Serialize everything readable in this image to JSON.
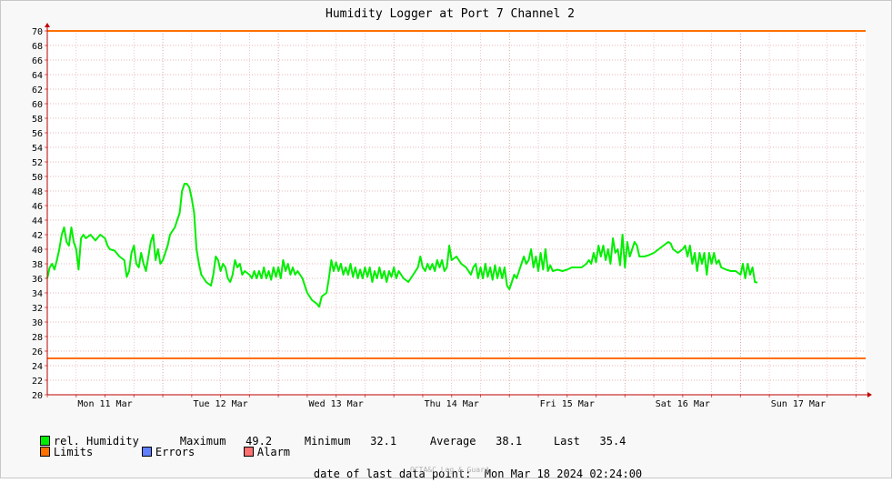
{
  "chart_data": {
    "type": "line",
    "title": "Humidity Logger at Port 7 Channel 2",
    "ylim": [
      20,
      70
    ],
    "yticks": [
      20,
      22,
      24,
      26,
      28,
      30,
      32,
      34,
      36,
      38,
      40,
      42,
      44,
      46,
      48,
      50,
      52,
      54,
      56,
      58,
      60,
      62,
      64,
      66,
      68,
      70
    ],
    "x_range_hours": [
      0,
      170
    ],
    "day_labels": [
      {
        "label": "Mon 11 Mar",
        "hour": 12
      },
      {
        "label": "Tue 12 Mar",
        "hour": 36
      },
      {
        "label": "Wed 13 Mar",
        "hour": 60
      },
      {
        "label": "Thu 14 Mar",
        "hour": 84
      },
      {
        "label": "Fri 15 Mar",
        "hour": 108
      },
      {
        "label": "Sat 16 Mar",
        "hour": 132
      },
      {
        "label": "Sun 17 Mar",
        "hour": 156
      }
    ],
    "limits": {
      "upper": 70,
      "lower": 25
    },
    "series": [
      {
        "name": "rel. Humidity",
        "color": "#00ee00",
        "points": [
          [
            0,
            36
          ],
          [
            0.5,
            37.5
          ],
          [
            1,
            38
          ],
          [
            1.5,
            37.2
          ],
          [
            2,
            38.5
          ],
          [
            2.5,
            40
          ],
          [
            3,
            42
          ],
          [
            3.5,
            43
          ],
          [
            4,
            41
          ],
          [
            4.5,
            40.5
          ],
          [
            5,
            43
          ],
          [
            5.5,
            41
          ],
          [
            6,
            40
          ],
          [
            6.5,
            37.2
          ],
          [
            7,
            41.5
          ],
          [
            7.5,
            42
          ],
          [
            8,
            41.5
          ],
          [
            9,
            42
          ],
          [
            10,
            41.2
          ],
          [
            11,
            42
          ],
          [
            12,
            41.5
          ],
          [
            12.5,
            40.5
          ],
          [
            13,
            40
          ],
          [
            14,
            39.8
          ],
          [
            15,
            39
          ],
          [
            16,
            38.5
          ],
          [
            16.5,
            36.2
          ],
          [
            17,
            37
          ],
          [
            17.5,
            39.5
          ],
          [
            18,
            40.5
          ],
          [
            18.5,
            38
          ],
          [
            19,
            37.5
          ],
          [
            19.5,
            39.5
          ],
          [
            20,
            38
          ],
          [
            20.5,
            37
          ],
          [
            21,
            39
          ],
          [
            21.5,
            41
          ],
          [
            22,
            42
          ],
          [
            22.5,
            38.5
          ],
          [
            23,
            40
          ],
          [
            23.5,
            38
          ],
          [
            24,
            38.5
          ],
          [
            25,
            40.5
          ],
          [
            25.5,
            42
          ],
          [
            26,
            42.5
          ],
          [
            26.5,
            43
          ],
          [
            27,
            44
          ],
          [
            27.5,
            45
          ],
          [
            28,
            48
          ],
          [
            28.5,
            49
          ],
          [
            29,
            49
          ],
          [
            29.5,
            48.5
          ],
          [
            30,
            47
          ],
          [
            30.5,
            45
          ],
          [
            31,
            40
          ],
          [
            31.5,
            38
          ],
          [
            32,
            36.5
          ],
          [
            33,
            35.5
          ],
          [
            34,
            35
          ],
          [
            34.5,
            36.5
          ],
          [
            35,
            39
          ],
          [
            35.5,
            38.5
          ],
          [
            36,
            37
          ],
          [
            36.5,
            38
          ],
          [
            37,
            37.5
          ],
          [
            37.5,
            36
          ],
          [
            38,
            35.5
          ],
          [
            38.5,
            36.5
          ],
          [
            39,
            38.5
          ],
          [
            39.5,
            37.5
          ],
          [
            40,
            38
          ],
          [
            40.5,
            36.5
          ],
          [
            41,
            37
          ],
          [
            42,
            36.5
          ],
          [
            42.5,
            36
          ],
          [
            43,
            37
          ],
          [
            43.5,
            36
          ],
          [
            44,
            37
          ],
          [
            44.5,
            36
          ],
          [
            45,
            37.5
          ],
          [
            45.5,
            36
          ],
          [
            46,
            37
          ],
          [
            46.5,
            35.8
          ],
          [
            47,
            37.5
          ],
          [
            47.5,
            36.2
          ],
          [
            48,
            37.5
          ],
          [
            48.5,
            36
          ],
          [
            49,
            38.5
          ],
          [
            49.5,
            37
          ],
          [
            50,
            38
          ],
          [
            50.5,
            36.5
          ],
          [
            51,
            37.5
          ],
          [
            51.5,
            36.5
          ],
          [
            52,
            37
          ],
          [
            53,
            36
          ],
          [
            54,
            34
          ],
          [
            55,
            33
          ],
          [
            56,
            32.5
          ],
          [
            56.5,
            32.1
          ],
          [
            57,
            33.5
          ],
          [
            58,
            34
          ],
          [
            58.5,
            36
          ],
          [
            59,
            38.5
          ],
          [
            59.5,
            37
          ],
          [
            60,
            38.2
          ],
          [
            60.5,
            37
          ],
          [
            61,
            38
          ],
          [
            61.5,
            36.5
          ],
          [
            62,
            37.5
          ],
          [
            62.5,
            36.5
          ],
          [
            63,
            38
          ],
          [
            63.5,
            36.2
          ],
          [
            64,
            37.5
          ],
          [
            64.5,
            36
          ],
          [
            65,
            37.2
          ],
          [
            65.5,
            36
          ],
          [
            66,
            37.5
          ],
          [
            66.5,
            36.2
          ],
          [
            67,
            37.5
          ],
          [
            67.5,
            35.5
          ],
          [
            68,
            37
          ],
          [
            68.5,
            36
          ],
          [
            69,
            37.5
          ],
          [
            69.5,
            36
          ],
          [
            70,
            37
          ],
          [
            70.5,
            35.5
          ],
          [
            71,
            37
          ],
          [
            71.5,
            36.2
          ],
          [
            72,
            37.5
          ],
          [
            72.5,
            36
          ],
          [
            73,
            37
          ],
          [
            74,
            36
          ],
          [
            75,
            35.5
          ],
          [
            76,
            36.5
          ],
          [
            77,
            37.5
          ],
          [
            77.5,
            39
          ],
          [
            78,
            37.5
          ],
          [
            78.5,
            37
          ],
          [
            79,
            38
          ],
          [
            79.5,
            37.2
          ],
          [
            80,
            38
          ],
          [
            80.5,
            37
          ],
          [
            81,
            38.5
          ],
          [
            81.5,
            37.5
          ],
          [
            82,
            38.5
          ],
          [
            82.5,
            37
          ],
          [
            83,
            37.5
          ],
          [
            83.5,
            40.5
          ],
          [
            84,
            38.5
          ],
          [
            85,
            39
          ],
          [
            86,
            38
          ],
          [
            87,
            37.5
          ],
          [
            88,
            36.5
          ],
          [
            88.5,
            37.5
          ],
          [
            89,
            38
          ],
          [
            89.5,
            36
          ],
          [
            90,
            37.5
          ],
          [
            90.5,
            36
          ],
          [
            91,
            38
          ],
          [
            91.5,
            36.2
          ],
          [
            92,
            37.5
          ],
          [
            92.5,
            35.8
          ],
          [
            93,
            37.8
          ],
          [
            93.5,
            36
          ],
          [
            94,
            37.5
          ],
          [
            94.5,
            36
          ],
          [
            95,
            37.5
          ],
          [
            95.5,
            35
          ],
          [
            96,
            34.5
          ],
          [
            96.5,
            35.5
          ],
          [
            97,
            36.5
          ],
          [
            97.5,
            36
          ],
          [
            98,
            37
          ],
          [
            98.5,
            38
          ],
          [
            99,
            39
          ],
          [
            99.5,
            38
          ],
          [
            100,
            38.5
          ],
          [
            100.5,
            40
          ],
          [
            101,
            37.5
          ],
          [
            101.5,
            39
          ],
          [
            102,
            37
          ],
          [
            102.5,
            39.5
          ],
          [
            103,
            37.2
          ],
          [
            103.5,
            40
          ],
          [
            104,
            37
          ],
          [
            104.5,
            37.8
          ],
          [
            105,
            37
          ],
          [
            106,
            37.2
          ],
          [
            107,
            37
          ],
          [
            108,
            37.2
          ],
          [
            109,
            37.5
          ],
          [
            110,
            37.5
          ],
          [
            111,
            37.5
          ],
          [
            112,
            38
          ],
          [
            112.5,
            38.5
          ],
          [
            113,
            38
          ],
          [
            113.5,
            39.5
          ],
          [
            114,
            38.2
          ],
          [
            114.5,
            40.5
          ],
          [
            115,
            39
          ],
          [
            115.5,
            40.5
          ],
          [
            116,
            38.5
          ],
          [
            116.5,
            40
          ],
          [
            117,
            38
          ],
          [
            117.5,
            41.5
          ],
          [
            118,
            39.5
          ],
          [
            118.5,
            40
          ],
          [
            119,
            37.8
          ],
          [
            119.5,
            42
          ],
          [
            120,
            37.5
          ],
          [
            120.5,
            41
          ],
          [
            121,
            39
          ],
          [
            122,
            41
          ],
          [
            122.5,
            40.5
          ],
          [
            123,
            39
          ],
          [
            124,
            39
          ],
          [
            125,
            39.2
          ],
          [
            126,
            39.5
          ],
          [
            127,
            40
          ],
          [
            128,
            40.5
          ],
          [
            129,
            41
          ],
          [
            129.5,
            40.8
          ],
          [
            130,
            40
          ],
          [
            131,
            39.5
          ],
          [
            132,
            40
          ],
          [
            132.5,
            40.5
          ],
          [
            133,
            39
          ],
          [
            133.5,
            40.5
          ],
          [
            134,
            38
          ],
          [
            134.5,
            39.5
          ],
          [
            135,
            37
          ],
          [
            135.5,
            39.5
          ],
          [
            136,
            38
          ],
          [
            136.5,
            39.5
          ],
          [
            137,
            36.5
          ],
          [
            137.5,
            39.5
          ],
          [
            138,
            38
          ],
          [
            138.5,
            39.5
          ],
          [
            139,
            38
          ],
          [
            139.5,
            38.5
          ],
          [
            140,
            37.5
          ],
          [
            141,
            37.2
          ],
          [
            142,
            37
          ],
          [
            143,
            37
          ],
          [
            144,
            36.5
          ],
          [
            144.5,
            38
          ],
          [
            145,
            36
          ],
          [
            145.5,
            38
          ],
          [
            146,
            36.5
          ],
          [
            146.5,
            37.5
          ],
          [
            147,
            35.5
          ],
          [
            147.5,
            35.4
          ]
        ]
      }
    ],
    "stats": {
      "maximum_label": "Maximum",
      "maximum": "49.2",
      "minimum_label": "Minimum",
      "minimum": "32.1",
      "average_label": "Average",
      "average": "38.1",
      "last_label": "Last",
      "last": "35.4"
    },
    "legend": {
      "series_label": "rel. Humidity",
      "series_color": "#00ee00",
      "limits_label": "Limits",
      "limits_color": "#ff7000",
      "errors_label": "Errors",
      "errors_color": "#6080ff",
      "alarm_label": "Alarm",
      "alarm_color": "#ff7070"
    },
    "footer": {
      "last_point_label": "date of last data point:",
      "last_point_value": "Mon Mar 18 2024 02:24:00",
      "watermark": "OCTA&C Log & Guard"
    }
  }
}
